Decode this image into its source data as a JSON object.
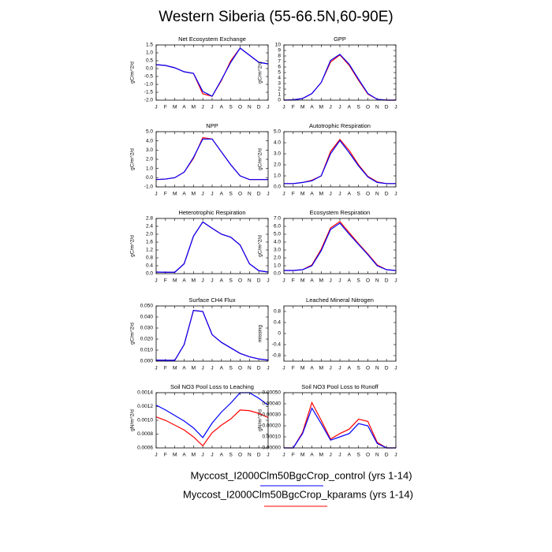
{
  "title": "Western Siberia (55-66.5N,60-90E)",
  "legend": [
    {
      "name": "Myccost_I2000Clm50BgcCrop_control (yrs 1-14)",
      "color": "#0000ff"
    },
    {
      "name": "Myccost_I2000Clm50BgcCrop_kparams (yrs 1-14)",
      "color": "#ff0000"
    }
  ],
  "chart_data": [
    {
      "type": "line",
      "title": "Net Ecosystem Exchange",
      "y_label": "gC/m^2/d",
      "categories": [
        "J",
        "F",
        "M",
        "A",
        "M",
        "J",
        "J",
        "A",
        "S",
        "O",
        "N",
        "D",
        "J"
      ],
      "ylim": [
        -2,
        1.5
      ],
      "yticks": [
        {
          "value": -2,
          "label": "-2.0"
        },
        {
          "value": -1.5,
          "label": "-1.5"
        },
        {
          "value": -1,
          "label": "-1.0"
        },
        {
          "value": -0.5,
          "label": "-0.5"
        },
        {
          "value": 0,
          "label": "0.0"
        },
        {
          "value": 0.5,
          "label": "0.5"
        },
        {
          "value": 1,
          "label": "1.0"
        },
        {
          "value": 1.5,
          "label": "1.5"
        }
      ],
      "series": [
        {
          "color": "#ff0000",
          "values": [
            0.25,
            0.2,
            0.05,
            -0.2,
            -0.3,
            -1.6,
            -1.75,
            -0.75,
            0.5,
            1.3,
            0.85,
            0.4,
            0.3
          ]
        },
        {
          "color": "#0000ff",
          "values": [
            0.25,
            0.2,
            0.05,
            -0.2,
            -0.3,
            -1.45,
            -1.75,
            -0.7,
            0.4,
            1.3,
            0.85,
            0.4,
            0.3
          ]
        }
      ]
    },
    {
      "type": "line",
      "title": "GPP",
      "y_label": "gC/m^2/d",
      "categories": [
        "J",
        "F",
        "M",
        "A",
        "M",
        "J",
        "J",
        "A",
        "S",
        "O",
        "N",
        "D",
        "J"
      ],
      "ylim": [
        0,
        10
      ],
      "yticks": [
        0,
        1,
        2,
        3,
        4,
        5,
        6,
        7,
        8,
        9,
        10
      ],
      "series": [
        {
          "color": "#ff0000",
          "values": [
            0,
            0.05,
            0.3,
            1.2,
            3.2,
            6.9,
            8.2,
            6.3,
            3.6,
            1.1,
            0.15,
            0,
            0
          ]
        },
        {
          "color": "#0000ff",
          "values": [
            0,
            0.05,
            0.3,
            1.2,
            3.2,
            7.2,
            8.3,
            6.5,
            3.8,
            1.2,
            0.15,
            0,
            0
          ]
        }
      ]
    },
    {
      "type": "line",
      "title": "NPP",
      "y_label": "gC/m^2/d",
      "categories": [
        "J",
        "F",
        "M",
        "A",
        "M",
        "J",
        "J",
        "A",
        "S",
        "O",
        "N",
        "D",
        "J"
      ],
      "ylim": [
        -1,
        5
      ],
      "yticks": [
        {
          "value": -1,
          "label": "-1.0"
        },
        {
          "value": 0,
          "label": "0.0"
        },
        {
          "value": 1,
          "label": "1.0"
        },
        {
          "value": 2,
          "label": "2.0"
        },
        {
          "value": 3,
          "label": "3.0"
        },
        {
          "value": 4,
          "label": "4.0"
        },
        {
          "value": 5,
          "label": "5.0"
        }
      ],
      "series": [
        {
          "color": "#ff0000",
          "values": [
            -0.2,
            -0.15,
            0,
            0.6,
            2.1,
            4.35,
            4.2,
            2.8,
            1.4,
            0.2,
            -0.2,
            -0.2,
            -0.2
          ]
        },
        {
          "color": "#0000ff",
          "values": [
            -0.2,
            -0.15,
            0,
            0.6,
            2.2,
            4.2,
            4.2,
            2.8,
            1.4,
            0.2,
            -0.2,
            -0.2,
            -0.2
          ]
        }
      ]
    },
    {
      "type": "line",
      "title": "Autotrophic Respiration",
      "y_label": "gC/m^2/d",
      "categories": [
        "J",
        "F",
        "M",
        "A",
        "M",
        "J",
        "J",
        "A",
        "S",
        "O",
        "N",
        "D",
        "J"
      ],
      "ylim": [
        0,
        5
      ],
      "yticks": [
        {
          "value": 0,
          "label": "0.0"
        },
        {
          "value": 1,
          "label": "1.0"
        },
        {
          "value": 2,
          "label": "2.0"
        },
        {
          "value": 3,
          "label": "3.0"
        },
        {
          "value": 4,
          "label": "4.0"
        },
        {
          "value": 5,
          "label": "5.0"
        }
      ],
      "series": [
        {
          "color": "#ff0000",
          "values": [
            0.3,
            0.3,
            0.4,
            0.6,
            1.0,
            3.2,
            4.3,
            3.3,
            2.0,
            0.95,
            0.45,
            0.3,
            0.3
          ]
        },
        {
          "color": "#0000ff",
          "values": [
            0.3,
            0.3,
            0.4,
            0.55,
            1.0,
            3.0,
            4.2,
            3.1,
            1.9,
            0.9,
            0.4,
            0.3,
            0.3
          ]
        }
      ]
    },
    {
      "type": "line",
      "title": "Heterotrophic Respiration",
      "y_label": "gC/m^2/d",
      "categories": [
        "J",
        "F",
        "M",
        "A",
        "M",
        "J",
        "J",
        "A",
        "S",
        "O",
        "N",
        "D",
        "J"
      ],
      "ylim": [
        0,
        2.8
      ],
      "yticks": [
        {
          "value": 0,
          "label": "0.0"
        },
        0.4,
        0.8,
        1.2,
        1.6,
        {
          "value": 2,
          "label": "2.0"
        },
        2.4,
        2.8
      ],
      "series": [
        {
          "color": "#ff0000",
          "values": [
            0.08,
            0.07,
            0.07,
            0.5,
            1.9,
            2.62,
            2.3,
            2.0,
            1.85,
            1.45,
            0.5,
            0.15,
            0.08
          ]
        },
        {
          "color": "#0000ff",
          "values": [
            0.08,
            0.07,
            0.07,
            0.5,
            1.9,
            2.62,
            2.3,
            2.0,
            1.85,
            1.45,
            0.5,
            0.15,
            0.08
          ]
        }
      ]
    },
    {
      "type": "line",
      "title": "Ecosystem Respiration",
      "y_label": "gC/m^2/d",
      "categories": [
        "J",
        "F",
        "M",
        "A",
        "M",
        "J",
        "J",
        "A",
        "S",
        "O",
        "N",
        "D",
        "J"
      ],
      "ylim": [
        0,
        7
      ],
      "yticks": [
        {
          "value": 0,
          "label": "0.0"
        },
        {
          "value": 1,
          "label": "1.0"
        },
        {
          "value": 2,
          "label": "2.0"
        },
        {
          "value": 3,
          "label": "3.0"
        },
        {
          "value": 4,
          "label": "4.0"
        },
        {
          "value": 5,
          "label": "5.0"
        },
        {
          "value": 6,
          "label": "6.0"
        },
        {
          "value": 7,
          "label": "7.0"
        }
      ],
      "series": [
        {
          "color": "#ff0000",
          "values": [
            0.4,
            0.4,
            0.5,
            1.1,
            3.1,
            5.8,
            6.6,
            5.2,
            3.8,
            2.5,
            1.1,
            0.5,
            0.4
          ]
        },
        {
          "color": "#0000ff",
          "values": [
            0.4,
            0.4,
            0.5,
            1.0,
            2.9,
            5.6,
            6.4,
            5.0,
            3.7,
            2.4,
            1.0,
            0.5,
            0.4
          ]
        }
      ]
    },
    {
      "type": "line",
      "title": "Surface CH4 Flux",
      "y_label": "gC/m^2/d",
      "categories": [
        "J",
        "F",
        "M",
        "A",
        "M",
        "J",
        "J",
        "A",
        "S",
        "O",
        "N",
        "D",
        "J"
      ],
      "ylim": [
        0,
        0.05
      ],
      "yticks": [
        {
          "value": 0,
          "label": "0.000"
        },
        {
          "value": 0.01,
          "label": "0.010"
        },
        {
          "value": 0.02,
          "label": "0.020"
        },
        {
          "value": 0.03,
          "label": "0.030"
        },
        {
          "value": 0.04,
          "label": "0.040"
        },
        {
          "value": 0.05,
          "label": "0.050"
        }
      ],
      "series": [
        {
          "color": "#ff0000",
          "values": [
            0.001,
            0.0008,
            0.0008,
            0.015,
            0.046,
            0.045,
            0.024,
            0.017,
            0.012,
            0.007,
            0.004,
            0.002,
            0.001
          ]
        },
        {
          "color": "#0000ff",
          "values": [
            0.001,
            0.0008,
            0.0008,
            0.015,
            0.046,
            0.045,
            0.024,
            0.017,
            0.012,
            0.007,
            0.004,
            0.002,
            0.001
          ]
        }
      ]
    },
    {
      "type": "line",
      "title": "Leached Mineral Nitrogen",
      "y_label": "missing",
      "categories": [
        "J",
        "F",
        "M",
        "A",
        "M",
        "J",
        "J",
        "A",
        "S",
        "O",
        "N",
        "D",
        "J"
      ],
      "ylim": [
        -1,
        1
      ],
      "yticks": [
        -0.8,
        -0.4,
        0,
        0.4,
        0.8
      ],
      "series": []
    },
    {
      "type": "line",
      "title": "Soil NO3 Pool Loss to Leaching",
      "y_label": "gN/m^2/d",
      "categories": [
        "J",
        "F",
        "M",
        "A",
        "M",
        "J",
        "J",
        "A",
        "S",
        "O",
        "N",
        "D",
        "J"
      ],
      "ylim": [
        0.0006,
        0.0014
      ],
      "yticks": [
        0.0006,
        0.0008,
        {
          "value": 0.001,
          "label": "0.0010"
        },
        0.0012,
        0.0014
      ],
      "series": [
        {
          "color": "#ff0000",
          "values": [
            0.00105,
            0.001,
            0.00093,
            0.00086,
            0.00076,
            0.00063,
            0.00082,
            0.00093,
            0.00102,
            0.00115,
            0.00114,
            0.0011,
            0.00104
          ]
        },
        {
          "color": "#0000ff",
          "values": [
            0.00122,
            0.00115,
            0.00107,
            0.00099,
            0.00089,
            0.00075,
            0.00096,
            0.00112,
            0.00125,
            0.0014,
            0.0014,
            0.00132,
            0.00122
          ]
        }
      ]
    },
    {
      "type": "line",
      "title": "Soil NO3 Pool Loss to Runoff",
      "y_label": "gN/m^2/d",
      "categories": [
        "J",
        "F",
        "M",
        "A",
        "M",
        "J",
        "J",
        "A",
        "S",
        "O",
        "N",
        "D",
        "J"
      ],
      "ylim": [
        0,
        0.0005
      ],
      "yticks": [
        {
          "value": 0,
          "label": "0.00000"
        },
        {
          "value": 0.0001,
          "label": "0.00010"
        },
        {
          "value": 0.0002,
          "label": "0.00020"
        },
        {
          "value": 0.0003,
          "label": "0.00030"
        },
        {
          "value": 0.0004,
          "label": "0.00040"
        },
        {
          "value": 0.0005,
          "label": "0.00050"
        }
      ],
      "series": [
        {
          "color": "#ff0000",
          "values": [
            0,
            0,
            0.00014,
            0.00041,
            0.00025,
            8e-05,
            0.00013,
            0.00017,
            0.00026,
            0.00024,
            5e-05,
            0,
            0
          ]
        },
        {
          "color": "#0000ff",
          "values": [
            0,
            0,
            0.00013,
            0.00036,
            0.00022,
            7e-05,
            0.0001,
            0.00013,
            0.00022,
            0.0002,
            4e-05,
            0,
            0
          ]
        }
      ]
    }
  ]
}
